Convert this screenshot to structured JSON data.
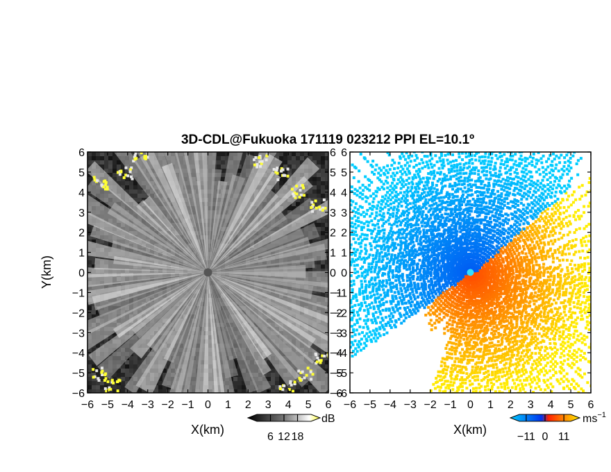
{
  "title": "3D-CDL@Fukuoka 171119 023212 PPI EL=10.1º",
  "chart_data": [
    {
      "type": "heatmap",
      "name": "reflectivity",
      "xlabel": "X(km)",
      "ylabel": "Y(km)",
      "xlim": [
        -6,
        6
      ],
      "ylim": [
        -6,
        6
      ],
      "xticks": [
        "−6",
        "−5",
        "−4",
        "−3",
        "−2",
        "−1",
        "0",
        "1",
        "2",
        "3",
        "4",
        "5",
        "6"
      ],
      "yticks": [
        "−6",
        "−5",
        "−4",
        "−3",
        "−2",
        "−1",
        "0",
        "1",
        "2",
        "3",
        "4",
        "5",
        "6"
      ],
      "colorbar": {
        "unit": "dB",
        "tick_values": [
          6,
          12,
          18
        ],
        "tick_labels": [
          "6",
          "12",
          "18"
        ],
        "range": [
          0,
          24
        ],
        "colors": [
          "#000000",
          "#ffffff",
          "#ffff33"
        ]
      },
      "radar_center": [
        0,
        0
      ]
    },
    {
      "type": "heatmap",
      "name": "doppler-velocity",
      "xlabel": "X(km)",
      "ylabel": "",
      "xlim": [
        -6,
        6
      ],
      "ylim": [
        -6,
        6
      ],
      "xticks": [
        "−6",
        "−5",
        "−4",
        "−3",
        "−2",
        "−1",
        "0",
        "1",
        "2",
        "3",
        "4",
        "5",
        "6"
      ],
      "yticks": [
        "−6",
        "−5",
        "−4",
        "−3",
        "−2",
        "−1",
        "0",
        "1",
        "2",
        "3",
        "4",
        "5",
        "6"
      ],
      "colorbar": {
        "unit": "ms",
        "unit_exp": "−1",
        "tick_values": [
          -11,
          0,
          11
        ],
        "tick_labels": [
          "−11",
          "0",
          "11"
        ],
        "range": [
          -15,
          15
        ],
        "colors": [
          "#00ccff",
          "#0033ee",
          "#ff2200",
          "#ffee00"
        ]
      },
      "radar_center": [
        0,
        0
      ]
    }
  ]
}
